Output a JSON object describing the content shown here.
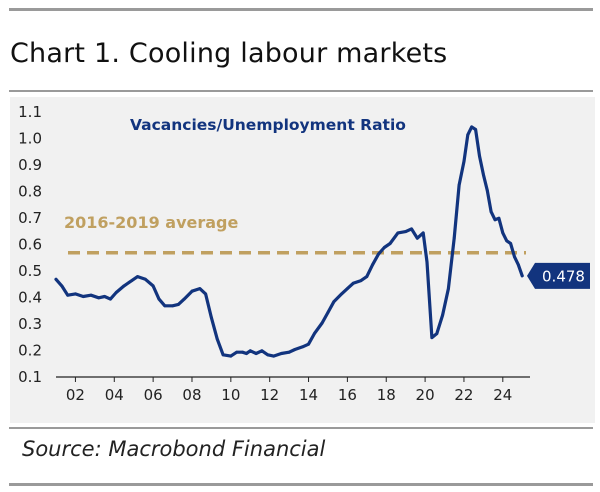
{
  "title": "Chart 1. Cooling labour markets",
  "source": "Source: Macrobond Financial",
  "colors": {
    "series": "#12347e",
    "average": "#c0a060",
    "panel": "#f1f1f1",
    "badge": "#12347e"
  },
  "chart_data": {
    "type": "line",
    "title": "",
    "xlabel": "",
    "ylabel": "",
    "xlim": [
      2001,
      2025.4
    ],
    "ylim": [
      0.1,
      1.1
    ],
    "yticks": [
      "0.1",
      "0.2",
      "0.3",
      "0.4",
      "0.5",
      "0.6",
      "0.7",
      "0.8",
      "0.9",
      "1.0",
      "1.1"
    ],
    "xticks": [
      "02",
      "04",
      "06",
      "08",
      "10",
      "12",
      "14",
      "16",
      "18",
      "20",
      "22",
      "24"
    ],
    "grid": false,
    "series": [
      {
        "name": "Vacancies/Unemployment Ratio",
        "points": [
          [
            2001.0,
            0.465
          ],
          [
            2001.3,
            0.44
          ],
          [
            2001.6,
            0.405
          ],
          [
            2002.0,
            0.41
          ],
          [
            2002.4,
            0.4
          ],
          [
            2002.8,
            0.405
          ],
          [
            2003.2,
            0.395
          ],
          [
            2003.5,
            0.4
          ],
          [
            2003.8,
            0.39
          ],
          [
            2004.1,
            0.415
          ],
          [
            2004.5,
            0.44
          ],
          [
            2004.9,
            0.46
          ],
          [
            2005.2,
            0.475
          ],
          [
            2005.6,
            0.465
          ],
          [
            2006.0,
            0.44
          ],
          [
            2006.3,
            0.39
          ],
          [
            2006.6,
            0.365
          ],
          [
            2007.0,
            0.365
          ],
          [
            2007.3,
            0.37
          ],
          [
            2007.6,
            0.39
          ],
          [
            2008.0,
            0.42
          ],
          [
            2008.4,
            0.43
          ],
          [
            2008.7,
            0.41
          ],
          [
            2009.0,
            0.32
          ],
          [
            2009.3,
            0.24
          ],
          [
            2009.6,
            0.18
          ],
          [
            2010.0,
            0.175
          ],
          [
            2010.3,
            0.19
          ],
          [
            2010.6,
            0.19
          ],
          [
            2010.8,
            0.185
          ],
          [
            2011.0,
            0.195
          ],
          [
            2011.3,
            0.185
          ],
          [
            2011.6,
            0.195
          ],
          [
            2011.9,
            0.18
          ],
          [
            2012.2,
            0.175
          ],
          [
            2012.6,
            0.185
          ],
          [
            2013.0,
            0.19
          ],
          [
            2013.3,
            0.2
          ],
          [
            2013.7,
            0.21
          ],
          [
            2014.0,
            0.22
          ],
          [
            2014.3,
            0.26
          ],
          [
            2014.7,
            0.3
          ],
          [
            2015.0,
            0.34
          ],
          [
            2015.3,
            0.38
          ],
          [
            2015.7,
            0.41
          ],
          [
            2016.0,
            0.43
          ],
          [
            2016.3,
            0.45
          ],
          [
            2016.7,
            0.46
          ],
          [
            2017.0,
            0.475
          ],
          [
            2017.3,
            0.52
          ],
          [
            2017.6,
            0.56
          ],
          [
            2017.9,
            0.585
          ],
          [
            2018.2,
            0.6
          ],
          [
            2018.6,
            0.64
          ],
          [
            2019.0,
            0.645
          ],
          [
            2019.3,
            0.655
          ],
          [
            2019.6,
            0.62
          ],
          [
            2019.9,
            0.64
          ],
          [
            2020.1,
            0.53
          ],
          [
            2020.35,
            0.245
          ],
          [
            2020.6,
            0.26
          ],
          [
            2020.9,
            0.33
          ],
          [
            2021.2,
            0.43
          ],
          [
            2021.5,
            0.62
          ],
          [
            2021.75,
            0.82
          ],
          [
            2022.0,
            0.91
          ],
          [
            2022.2,
            1.01
          ],
          [
            2022.4,
            1.04
          ],
          [
            2022.6,
            1.03
          ],
          [
            2022.8,
            0.93
          ],
          [
            2023.0,
            0.86
          ],
          [
            2023.2,
            0.8
          ],
          [
            2023.4,
            0.72
          ],
          [
            2023.6,
            0.69
          ],
          [
            2023.8,
            0.695
          ],
          [
            2024.0,
            0.64
          ],
          [
            2024.2,
            0.61
          ],
          [
            2024.4,
            0.6
          ],
          [
            2024.6,
            0.55
          ],
          [
            2024.8,
            0.52
          ],
          [
            2025.0,
            0.478
          ]
        ]
      }
    ],
    "annotations": {
      "series_label": "Vacancies/Unemployment Ratio",
      "average_label": "2016-2019 average",
      "average_value": 0.565,
      "last_value_label": "0.478",
      "last_value": 0.478
    }
  }
}
